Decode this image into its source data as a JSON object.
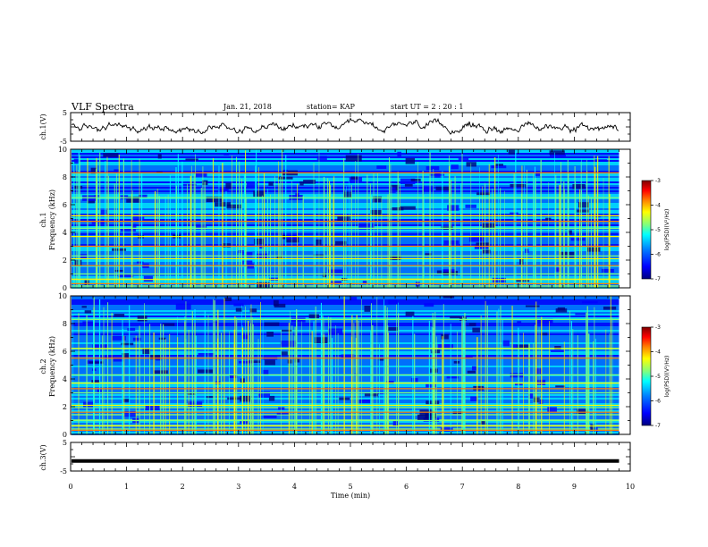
{
  "header": {
    "title": "VLF Spectra",
    "date": "Jan. 21, 2018",
    "station": "station= KAP",
    "start_ut": "start UT =  2 : 20 : 1"
  },
  "chart_data": [
    {
      "type": "line",
      "panel": "ch1-waveform",
      "ylabel": "ch.1(V)",
      "ylim": [
        -5,
        5
      ],
      "xlim": [
        0,
        10
      ],
      "yticks": [
        "5",
        "-5"
      ],
      "description_values": "noisy waveform oscillating roughly between -2 and 2 V over 0–9.8 min"
    },
    {
      "type": "heatmap",
      "panel": "ch1-spectrogram",
      "ylabel_top": "ch.1",
      "ylabel": "Frequency (kHz)",
      "ylim": [
        0,
        10
      ],
      "xlim": [
        0,
        10
      ],
      "yticks": [
        "0",
        "2",
        "4",
        "6",
        "8",
        "10"
      ],
      "colorbar": {
        "label": "log(PSD)(V²/Hz)",
        "ticks": [
          "-3",
          "-4",
          "-5",
          "-6",
          "-7"
        ],
        "range": [
          -7,
          -3
        ]
      },
      "lines_khz": [
        0.3,
        0.6,
        1.0,
        1.6,
        2.1,
        2.3,
        3.0,
        3.7,
        4.3,
        4.8,
        5.2,
        6.5,
        8.3
      ]
    },
    {
      "type": "heatmap",
      "panel": "ch2-spectrogram",
      "ylabel_top": "ch.2",
      "ylabel": "Frequency (kHz)",
      "ylim": [
        0,
        10
      ],
      "xlim": [
        0,
        10
      ],
      "yticks": [
        "0",
        "2",
        "4",
        "6",
        "8",
        "10"
      ],
      "colorbar": {
        "label": "log(PSD)(V²/Hz)",
        "ticks": [
          "-3",
          "-4",
          "-5",
          "-6",
          "-7"
        ],
        "range": [
          -7,
          -3
        ]
      },
      "lines_khz": [
        0.3,
        0.6,
        1.0,
        1.6,
        2.1,
        3.0,
        3.3,
        3.7,
        4.3,
        5.5,
        6.2,
        8.3
      ]
    },
    {
      "type": "line",
      "panel": "ch3-waveform",
      "ylabel": "ch.3(V)",
      "ylim": [
        -5,
        5
      ],
      "xlim": [
        0,
        10
      ],
      "yticks": [
        "5",
        "-5"
      ],
      "flat_value": -1.5
    }
  ],
  "xaxis": {
    "label": "Time (min)",
    "ticks": [
      "0",
      "1",
      "2",
      "3",
      "4",
      "5",
      "6",
      "7",
      "8",
      "9",
      "10"
    ],
    "data_end": 9.8
  },
  "colors": {
    "waveform": "#000000",
    "cmap": [
      "#00007f",
      "#0000ff",
      "#007fff",
      "#00ffff",
      "#7fff7f",
      "#ffff00",
      "#ff7f00",
      "#ff0000",
      "#7f0000"
    ]
  }
}
